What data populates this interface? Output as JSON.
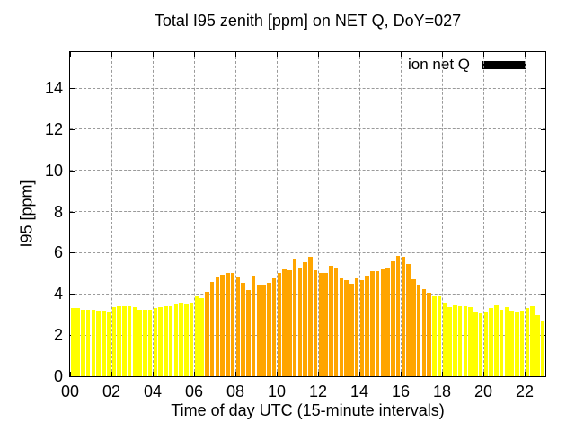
{
  "chart_data": {
    "type": "bar",
    "title": "Total I95 zenith [ppm] on NET Q, DoY=027",
    "xlabel": "Time of day UTC (15-minute intervals)",
    "ylabel": "I95 [ppm]",
    "legend": [
      {
        "label": "ion net Q",
        "color": "#000000"
      }
    ],
    "legend_position": "top-right-inside",
    "grid": true,
    "bar_interval_minutes": 15,
    "xlim_hours": [
      0,
      23
    ],
    "ylim": [
      0,
      15.75
    ],
    "y_ticks": [
      0,
      2,
      4,
      6,
      8,
      10,
      12,
      14
    ],
    "x_tick_hours": [
      0,
      2,
      4,
      6,
      8,
      10,
      12,
      14,
      16,
      18,
      20,
      22
    ],
    "x_tick_labels": [
      "00",
      "02",
      "04",
      "06",
      "08",
      "10",
      "12",
      "14",
      "16",
      "18",
      "20",
      "22"
    ],
    "night_color": "#ffff00",
    "day_color": "#ffa500",
    "day_start_index": 26,
    "day_end_index": 69,
    "times": [
      "00:00",
      "00:15",
      "00:30",
      "00:45",
      "01:00",
      "01:15",
      "01:30",
      "01:45",
      "02:00",
      "02:15",
      "02:30",
      "02:45",
      "03:00",
      "03:15",
      "03:30",
      "03:45",
      "04:00",
      "04:15",
      "04:30",
      "04:45",
      "05:00",
      "05:15",
      "05:30",
      "05:45",
      "06:00",
      "06:15",
      "06:30",
      "06:45",
      "07:00",
      "07:15",
      "07:30",
      "07:45",
      "08:00",
      "08:15",
      "08:30",
      "08:45",
      "09:00",
      "09:15",
      "09:30",
      "09:45",
      "10:00",
      "10:15",
      "10:30",
      "10:45",
      "11:00",
      "11:15",
      "11:30",
      "11:45",
      "12:00",
      "12:15",
      "12:30",
      "12:45",
      "13:00",
      "13:15",
      "13:30",
      "13:45",
      "14:00",
      "14:15",
      "14:30",
      "14:45",
      "15:00",
      "15:15",
      "15:30",
      "15:45",
      "16:00",
      "16:15",
      "16:30",
      "16:45",
      "17:00",
      "17:15",
      "17:30",
      "17:45",
      "18:00",
      "18:15",
      "18:30",
      "18:45",
      "19:00",
      "19:15",
      "19:30",
      "19:45",
      "20:00",
      "20:15",
      "20:30",
      "20:45",
      "21:00",
      "21:15",
      "21:30",
      "21:45",
      "22:00",
      "22:15",
      "22:30",
      "22:45"
    ],
    "values": [
      3.3,
      3.3,
      3.25,
      3.25,
      3.25,
      3.2,
      3.2,
      3.15,
      3.35,
      3.4,
      3.4,
      3.4,
      3.35,
      3.25,
      3.25,
      3.25,
      3.3,
      3.35,
      3.4,
      3.4,
      3.5,
      3.55,
      3.5,
      3.6,
      3.9,
      3.8,
      4.1,
      4.6,
      4.85,
      4.95,
      5.0,
      5.0,
      4.8,
      4.55,
      4.2,
      4.9,
      4.45,
      4.45,
      4.55,
      4.75,
      5.0,
      5.2,
      5.15,
      5.7,
      5.25,
      5.55,
      5.8,
      5.15,
      5.0,
      5.0,
      5.35,
      5.25,
      4.75,
      4.65,
      4.5,
      4.75,
      4.65,
      4.9,
      5.1,
      5.1,
      5.2,
      5.3,
      5.6,
      5.85,
      5.8,
      5.45,
      4.7,
      4.45,
      4.25,
      4.05,
      3.9,
      3.9,
      3.6,
      3.35,
      3.45,
      3.4,
      3.4,
      3.35,
      3.15,
      3.05,
      3.1,
      3.3,
      3.45,
      3.25,
      3.35,
      3.2,
      3.1,
      3.2,
      3.3,
      3.4,
      2.95,
      2.7
    ]
  }
}
